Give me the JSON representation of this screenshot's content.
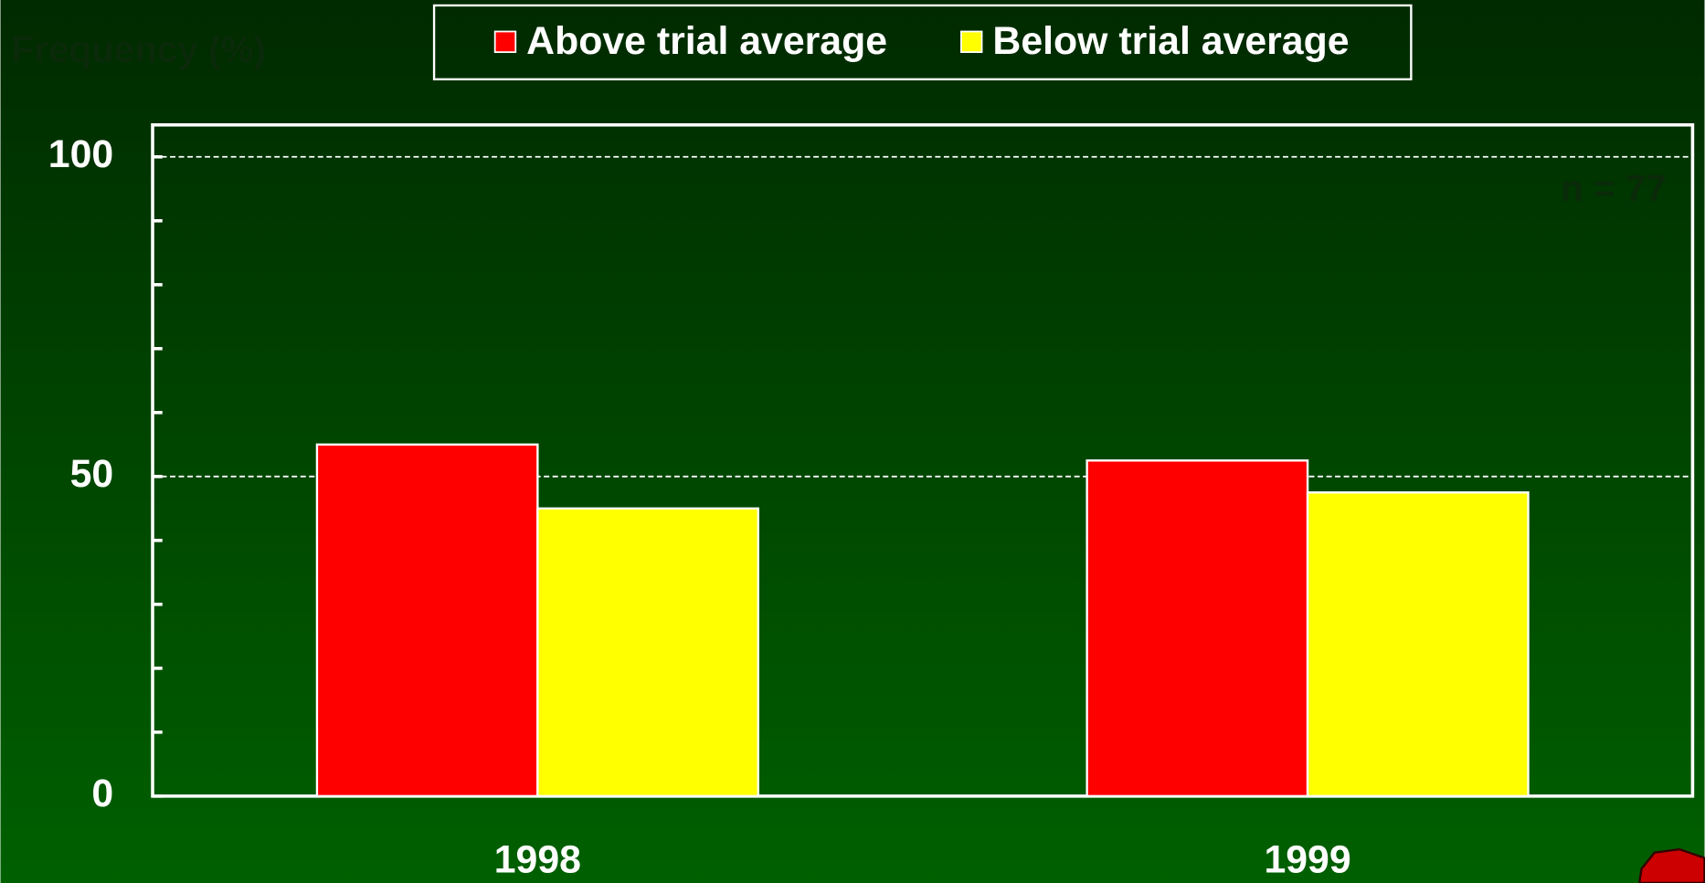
{
  "chart_data": {
    "type": "bar",
    "y_label": "Frequency (%)",
    "annotation": "n = 77",
    "categories": [
      "1998",
      "1999"
    ],
    "series": [
      {
        "name": "Above trial average",
        "color": "#ff0000",
        "values": [
          55,
          52.5
        ]
      },
      {
        "name": "Below trial average",
        "color": "#ffff00",
        "values": [
          45,
          47.5
        ]
      }
    ],
    "ylim": [
      0,
      105
    ],
    "yticks": [
      0,
      50,
      100
    ],
    "minor_yticks": [
      10,
      20,
      30,
      40,
      60,
      70,
      80,
      90
    ],
    "grid": true,
    "legend": "top"
  }
}
